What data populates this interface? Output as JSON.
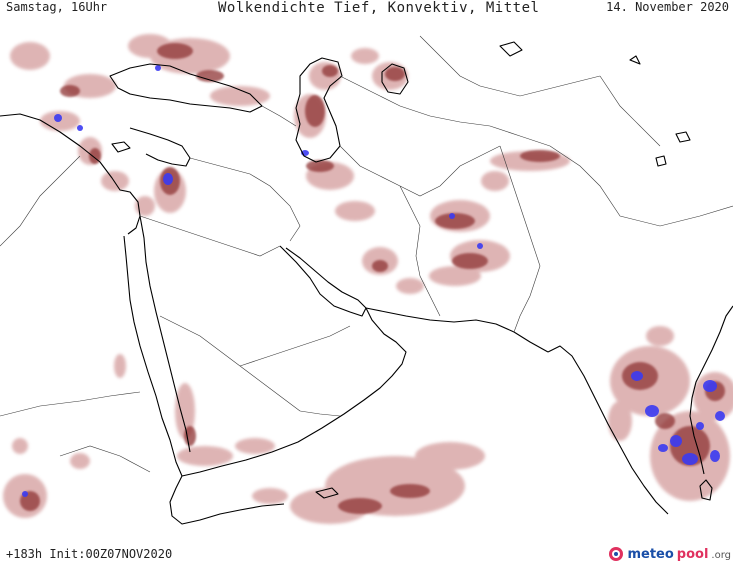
{
  "header": {
    "left": "Samstag, 16Uhr",
    "title": "Wolkendichte  Tief, Konvektiv, Mittel",
    "right": "14. November 2020"
  },
  "footer": {
    "run_info": "+183h Init:00Z07NOV2020"
  },
  "brand": {
    "part1": "meteo",
    "part2": "pool",
    "part3": ".org",
    "icon": "meteopool-logo-icon"
  },
  "colors": {
    "cloud_light": "#d9a8a8",
    "cloud_medium": "#b86b6b",
    "cloud_dark": "#8f3434",
    "convective": "#3b3bf2",
    "coastline": "#000000",
    "border": "#333333"
  }
}
